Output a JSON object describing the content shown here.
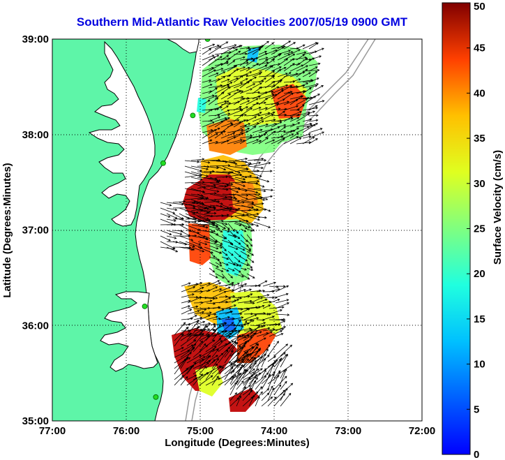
{
  "title": "Southern Mid-Atlantic Raw Velocities 2007/05/19 0900 GMT",
  "map": {
    "x_axis": {
      "label": "Longitude (Degrees:Minutes)",
      "ticks": [
        "77:00",
        "76:00",
        "75:00",
        "74:00",
        "73:00",
        "72:00"
      ],
      "range": [
        -77,
        -72
      ]
    },
    "y_axis": {
      "label": "Latitude (Degrees:Minutes)",
      "ticks": [
        "39:00",
        "38:00",
        "37:00",
        "36:00",
        "35:00"
      ],
      "range": [
        35,
        39
      ]
    },
    "grid": "dotted",
    "land_color": "#5ef5a8",
    "coastline_color": "#000000",
    "bathymetry_color": "#999999"
  },
  "colorbar": {
    "label": "Surface Velocity (cm/s)",
    "ticks": [
      "0",
      "5",
      "10",
      "15",
      "20",
      "25",
      "30",
      "35",
      "40",
      "45",
      "50"
    ],
    "range": [
      0,
      50
    ],
    "colormap": "jet"
  },
  "stations": [
    {
      "lon": -74.9,
      "lat": 39.0
    },
    {
      "lon": -75.1,
      "lat": 38.2
    },
    {
      "lon": -75.5,
      "lat": 37.7
    },
    {
      "lon": -75.75,
      "lat": 36.2
    },
    {
      "lon": -75.6,
      "lat": 35.25
    }
  ]
}
